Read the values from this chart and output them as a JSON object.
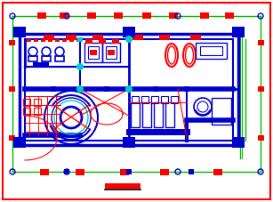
{
  "bg": "#ffffff",
  "W": "#0000cc",
  "R": "#ff0000",
  "G": "#00bb00",
  "C": "#00cccc",
  "B": "#0000cc",
  "K": "#000000"
}
